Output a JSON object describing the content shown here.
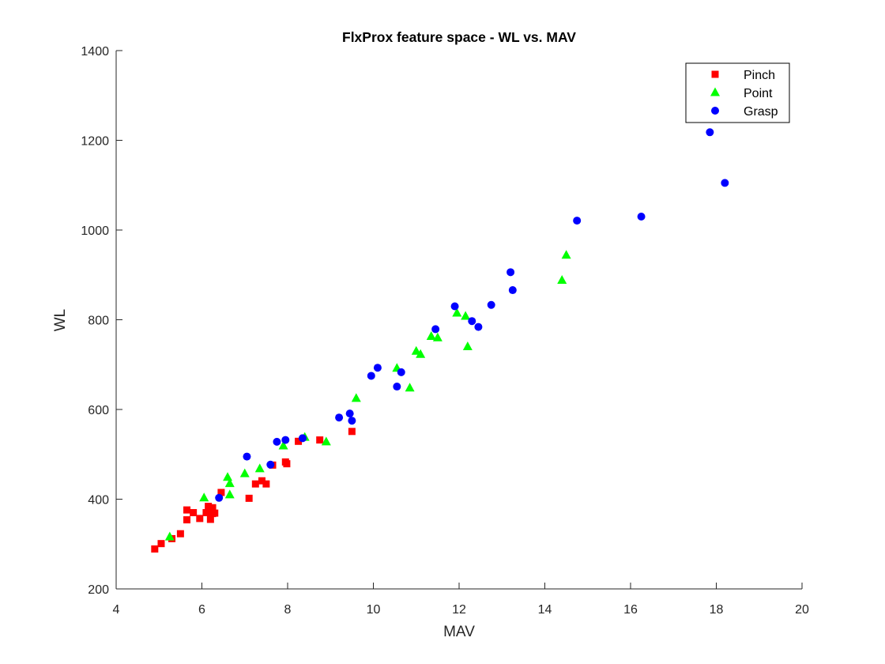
{
  "chart_data": {
    "type": "scatter",
    "title": "FlxProx feature space - WL vs. MAV",
    "xlabel": "MAV",
    "ylabel": "WL",
    "xlim": [
      4,
      20
    ],
    "ylim": [
      200,
      1400
    ],
    "xticks": [
      "4",
      "6",
      "8",
      "10",
      "12",
      "14",
      "16",
      "18",
      "20"
    ],
    "yticks": [
      "200",
      "400",
      "600",
      "800",
      "1000",
      "1200",
      "1400"
    ],
    "grid": false,
    "legend_position": "top-right",
    "series": [
      {
        "name": "Pinch",
        "marker": "square",
        "color": "#ff0000",
        "points": [
          [
            4.9,
            289
          ],
          [
            5.05,
            301
          ],
          [
            5.3,
            312
          ],
          [
            5.5,
            323
          ],
          [
            5.65,
            376
          ],
          [
            5.65,
            354
          ],
          [
            5.8,
            370
          ],
          [
            5.95,
            357
          ],
          [
            6.1,
            370
          ],
          [
            6.15,
            384
          ],
          [
            6.2,
            355
          ],
          [
            6.25,
            368
          ],
          [
            6.25,
            381
          ],
          [
            6.3,
            369
          ],
          [
            6.45,
            415
          ],
          [
            7.1,
            402
          ],
          [
            7.25,
            434
          ],
          [
            7.4,
            441
          ],
          [
            7.5,
            434
          ],
          [
            7.65,
            476
          ],
          [
            7.95,
            483
          ],
          [
            7.98,
            479
          ],
          [
            8.25,
            529
          ],
          [
            8.75,
            532
          ],
          [
            9.5,
            551
          ]
        ]
      },
      {
        "name": "Point",
        "marker": "triangle",
        "color": "#00ff00",
        "points": [
          [
            5.25,
            316
          ],
          [
            6.05,
            403
          ],
          [
            6.6,
            449
          ],
          [
            6.65,
            435
          ],
          [
            6.65,
            410
          ],
          [
            7.0,
            457
          ],
          [
            7.35,
            468
          ],
          [
            7.9,
            519
          ],
          [
            8.4,
            538
          ],
          [
            8.9,
            528
          ],
          [
            9.6,
            625
          ],
          [
            10.55,
            692
          ],
          [
            10.85,
            648
          ],
          [
            11.0,
            730
          ],
          [
            11.1,
            723
          ],
          [
            11.35,
            763
          ],
          [
            11.5,
            760
          ],
          [
            11.95,
            815
          ],
          [
            12.15,
            808
          ],
          [
            12.2,
            740
          ],
          [
            14.4,
            888
          ],
          [
            14.5,
            944
          ]
        ]
      },
      {
        "name": "Grasp",
        "marker": "circle",
        "color": "#0000ff",
        "points": [
          [
            6.4,
            403
          ],
          [
            7.05,
            495
          ],
          [
            7.6,
            477
          ],
          [
            7.75,
            528
          ],
          [
            7.95,
            532
          ],
          [
            8.35,
            536
          ],
          [
            9.2,
            582
          ],
          [
            9.45,
            591
          ],
          [
            9.5,
            575
          ],
          [
            9.95,
            675
          ],
          [
            10.1,
            693
          ],
          [
            10.55,
            651
          ],
          [
            10.65,
            683
          ],
          [
            11.45,
            779
          ],
          [
            11.9,
            830
          ],
          [
            12.3,
            797
          ],
          [
            12.45,
            784
          ],
          [
            12.75,
            833
          ],
          [
            13.2,
            906
          ],
          [
            13.25,
            866
          ],
          [
            14.75,
            1021
          ],
          [
            16.25,
            1030
          ],
          [
            17.85,
            1218
          ],
          [
            18.2,
            1105
          ]
        ]
      }
    ]
  }
}
